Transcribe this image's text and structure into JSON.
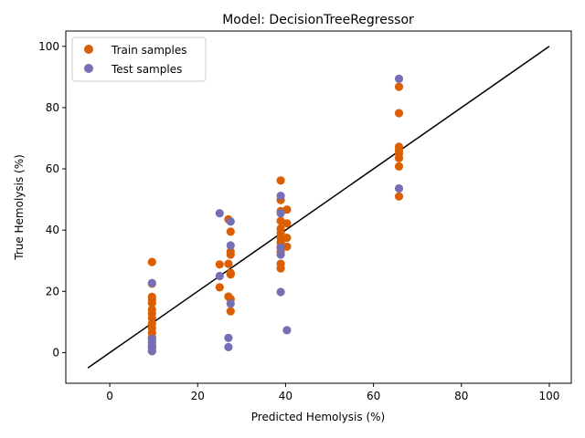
{
  "chart_data": {
    "type": "scatter",
    "title": "Model: DecisionTreeRegressor",
    "xlabel": "Predicted Hemolysis (%)",
    "ylabel": "True Hemolysis (%)",
    "xlim": [
      -10,
      105
    ],
    "ylim": [
      -10,
      105
    ],
    "xticks": [
      0,
      20,
      40,
      60,
      80,
      100
    ],
    "yticks": [
      0,
      20,
      40,
      60,
      80,
      100
    ],
    "grid": false,
    "legend": "top-left",
    "reference_line": {
      "x": [
        -5,
        100
      ],
      "y": [
        -5,
        100
      ],
      "color": "#000000"
    },
    "series": [
      {
        "name": "Train samples",
        "color": "#d95f02",
        "points": [
          [
            9.6,
            29.6
          ],
          [
            9.6,
            22.5
          ],
          [
            9.6,
            18.2
          ],
          [
            9.6,
            17.3
          ],
          [
            9.6,
            16.2
          ],
          [
            9.6,
            14.0
          ],
          [
            9.6,
            12.8
          ],
          [
            9.6,
            11.3
          ],
          [
            9.6,
            9.5
          ],
          [
            9.6,
            8.0
          ],
          [
            9.6,
            6.5
          ],
          [
            9.6,
            5.0
          ],
          [
            9.6,
            3.5
          ],
          [
            9.6,
            2.0
          ],
          [
            9.6,
            0.5
          ],
          [
            25.0,
            28.8
          ],
          [
            25.0,
            21.3
          ],
          [
            27.0,
            43.5
          ],
          [
            27.0,
            29.0
          ],
          [
            27.0,
            18.3
          ],
          [
            27.5,
            39.5
          ],
          [
            27.5,
            33.0
          ],
          [
            27.5,
            32.0
          ],
          [
            27.5,
            26.0
          ],
          [
            27.5,
            25.5
          ],
          [
            27.5,
            17.5
          ],
          [
            27.5,
            13.5
          ],
          [
            38.9,
            56.2
          ],
          [
            38.9,
            49.8
          ],
          [
            38.9,
            46.2
          ],
          [
            38.9,
            43.0
          ],
          [
            38.9,
            40.5
          ],
          [
            38.9,
            39.0
          ],
          [
            38.9,
            37.5
          ],
          [
            38.9,
            36.0
          ],
          [
            38.9,
            34.5
          ],
          [
            38.9,
            33.0
          ],
          [
            38.9,
            29.0
          ],
          [
            38.9,
            27.5
          ],
          [
            40.3,
            46.7
          ],
          [
            40.3,
            42.2
          ],
          [
            40.3,
            37.5
          ],
          [
            40.3,
            34.6
          ],
          [
            65.8,
            86.8
          ],
          [
            65.8,
            78.2
          ],
          [
            65.8,
            67.2
          ],
          [
            65.8,
            66.0
          ],
          [
            65.8,
            65.0
          ],
          [
            65.8,
            63.5
          ],
          [
            65.8,
            60.8
          ],
          [
            65.8,
            51.0
          ]
        ]
      },
      {
        "name": "Test samples",
        "color": "#7570b3",
        "points": [
          [
            9.6,
            22.7
          ],
          [
            9.6,
            4.5
          ],
          [
            9.6,
            3.5
          ],
          [
            9.6,
            2.5
          ],
          [
            9.6,
            1.5
          ],
          [
            9.6,
            0.5
          ],
          [
            25.0,
            45.5
          ],
          [
            25.0,
            25.0
          ],
          [
            27.5,
            42.8
          ],
          [
            27.5,
            35.0
          ],
          [
            27.5,
            16.0
          ],
          [
            27.0,
            4.8
          ],
          [
            27.0,
            1.8
          ],
          [
            38.9,
            51.2
          ],
          [
            38.9,
            45.5
          ],
          [
            38.9,
            34.3
          ],
          [
            38.9,
            32.0
          ],
          [
            38.9,
            19.8
          ],
          [
            40.3,
            7.3
          ],
          [
            65.8,
            89.4
          ],
          [
            65.8,
            53.6
          ]
        ]
      }
    ]
  }
}
